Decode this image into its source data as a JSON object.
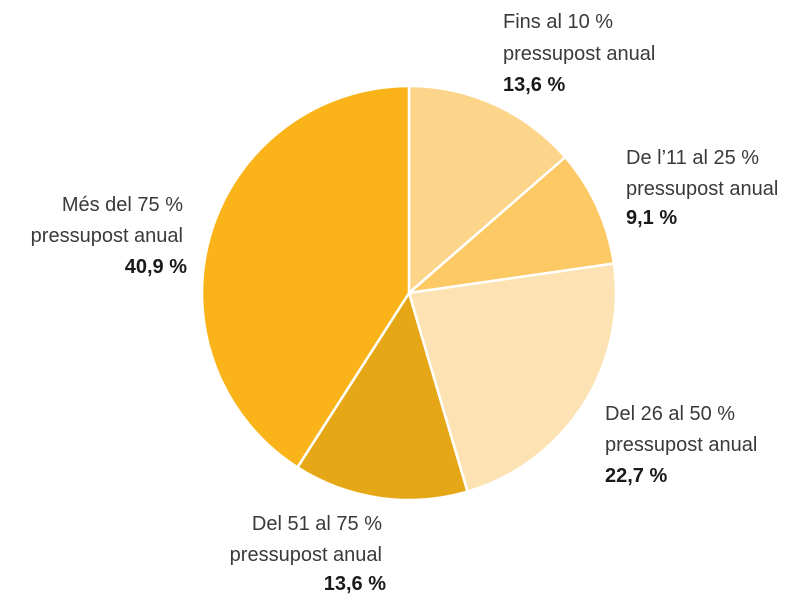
{
  "chart_data": {
    "type": "pie",
    "start_angle_deg": 0,
    "direction": "clockwise",
    "slices": [
      {
        "label_line1": "Fins al 10 %",
        "label_line2": "pressupost anual",
        "value": 13.6,
        "value_label": "13,6 %",
        "color": "#FCD58A"
      },
      {
        "label_line1": "De l’11 al 25 %",
        "label_line2": "pressupost anual",
        "value": 9.1,
        "value_label": "9,1 %",
        "color": "#FCC965"
      },
      {
        "label_line1": "Del 26 al 50 %",
        "label_line2": "pressupost anual",
        "value": 22.7,
        "value_label": "22,7 %",
        "color": "#FDE3B3"
      },
      {
        "label_line1": "Del 51 al 75 %",
        "label_line2": "pressupost anual",
        "value": 13.6,
        "value_label": "13,6 %",
        "color": "#E5A715"
      },
      {
        "label_line1": "Més del 75 %",
        "label_line2": "pressupost anual",
        "value": 40.9,
        "value_label": "40,9 %",
        "color": "#FAB41A"
      }
    ]
  }
}
